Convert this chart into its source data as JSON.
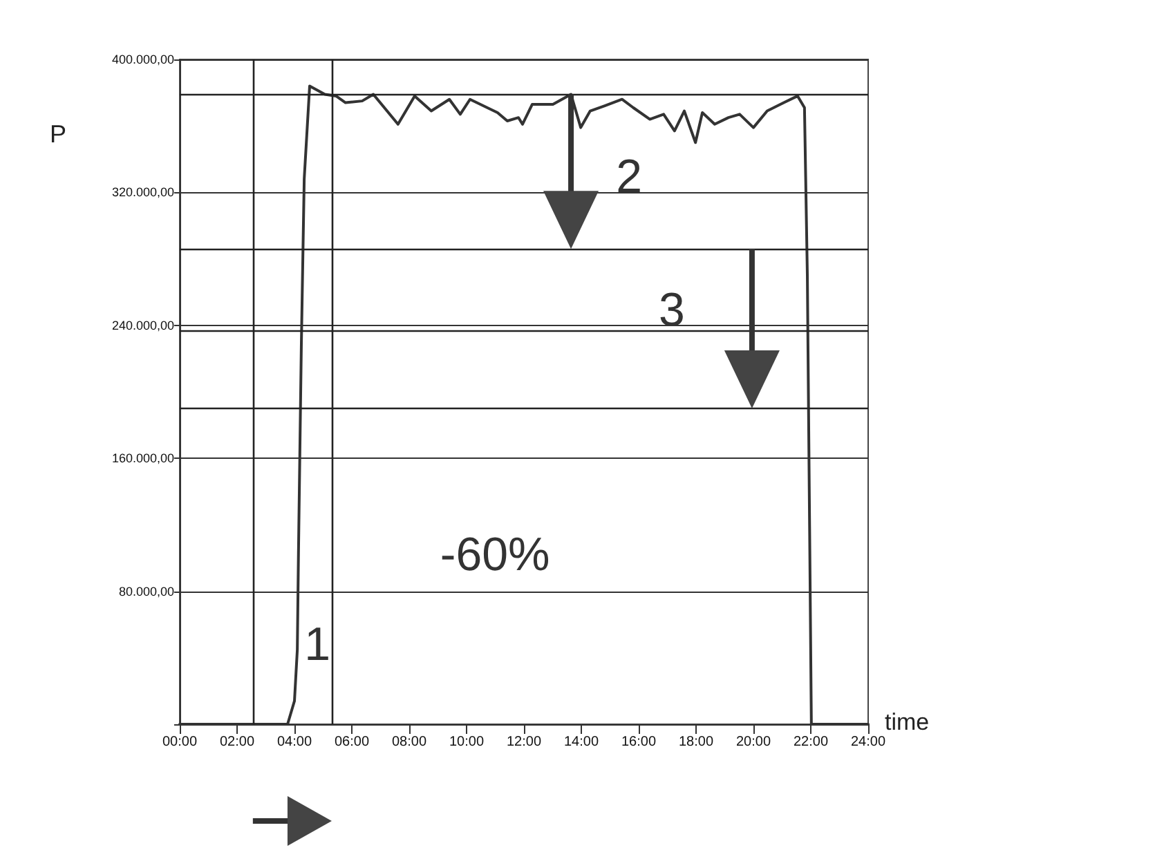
{
  "chart_data": {
    "type": "line",
    "xlabel": "time",
    "ylabel": "P",
    "x": [
      0,
      3.76,
      4.0,
      4.1,
      4.14,
      4.24,
      4.34,
      4.53,
      5.06,
      5.45,
      5.78,
      6.36,
      6.75,
      7.61,
      8.19,
      8.77,
      9.4,
      9.78,
      10.12,
      11.08,
      11.42,
      11.81,
      11.95,
      12.29,
      13.01,
      13.64,
      13.98,
      14.31,
      14.8,
      15.42,
      15.81,
      16.39,
      16.87,
      17.25,
      17.59,
      17.98,
      18.22,
      18.65,
      19.13,
      19.52,
      20.0,
      20.48,
      21.06,
      21.54,
      21.78,
      21.88,
      22.02,
      24
    ],
    "values": [
      0,
      0,
      14000,
      45000,
      103000,
      228000,
      328000,
      384000,
      379000,
      378000,
      374000,
      375000,
      379000,
      361000,
      378000,
      369000,
      376000,
      367000,
      376000,
      368000,
      363000,
      365000,
      361000,
      373000,
      373000,
      379000,
      359000,
      369000,
      372000,
      376000,
      371000,
      364000,
      367000,
      357000,
      369000,
      350000,
      368000,
      361000,
      365000,
      367000,
      359000,
      369000,
      374000,
      378000,
      371000,
      270000,
      0,
      0
    ],
    "color": "#333333",
    "marker": "none",
    "line_style": "solid",
    "xlim": [
      0,
      24
    ],
    "xticks": [
      {
        "value": 0,
        "label": "00:00"
      },
      {
        "value": 2,
        "label": "02:00"
      },
      {
        "value": 4,
        "label": "04:00"
      },
      {
        "value": 6,
        "label": "06:00"
      },
      {
        "value": 8,
        "label": "08:00"
      },
      {
        "value": 10,
        "label": "10:00"
      },
      {
        "value": 12,
        "label": "12:00"
      },
      {
        "value": 14,
        "label": "14:00"
      },
      {
        "value": 16,
        "label": "16:00"
      },
      {
        "value": 18,
        "label": "18:00"
      },
      {
        "value": 20,
        "label": "20:00"
      },
      {
        "value": 22,
        "label": "22:00"
      },
      {
        "value": 24,
        "label": "24:00"
      }
    ],
    "ylim": [
      0,
      400000
    ],
    "yticks": [
      {
        "value": 0,
        "label": null
      },
      {
        "value": 80000,
        "label": "80.000,00"
      },
      {
        "value": 160000,
        "label": "160.000,00"
      },
      {
        "value": 240000,
        "label": "240.000,00"
      },
      {
        "value": 320000,
        "label": "320.000,00"
      },
      {
        "value": 400000,
        "label": "400.000,00"
      }
    ],
    "grid": "y",
    "ref_lines": [
      {
        "axis": "x",
        "value": 2.55,
        "color": "#222222"
      },
      {
        "axis": "x",
        "value": 5.3,
        "color": "#222222"
      },
      {
        "axis": "y",
        "value": 379000,
        "color": "#222222"
      },
      {
        "axis": "y",
        "value": 286000,
        "color": "#222222"
      },
      {
        "axis": "y",
        "value": 237000,
        "color": "#222222"
      },
      {
        "axis": "y",
        "value": 190000,
        "color": "#222222"
      }
    ],
    "annotations": [
      "1",
      {
        "text": "2",
        "x": 13.64,
        "y": 286000
      },
      {
        "text": "3",
        "x": 19.95,
        "y": 190000
      },
      "-60%"
    ]
  }
}
